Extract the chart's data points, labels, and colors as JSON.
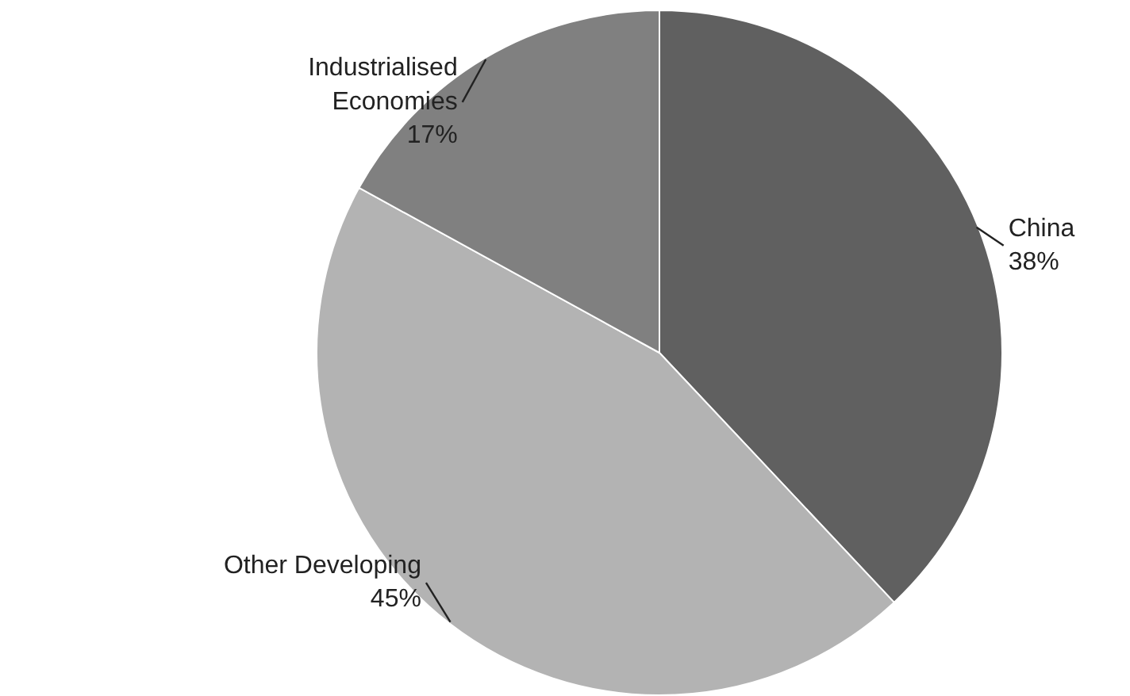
{
  "chart_data": {
    "type": "pie",
    "categories": [
      "China",
      "Other Developing",
      "Industrialised Economies"
    ],
    "values": [
      38,
      45,
      17
    ],
    "colors": [
      "#606060",
      "#b3b3b3",
      "#808080"
    ],
    "value_labels": [
      "38%",
      "45%",
      "17%"
    ],
    "legend": false
  }
}
